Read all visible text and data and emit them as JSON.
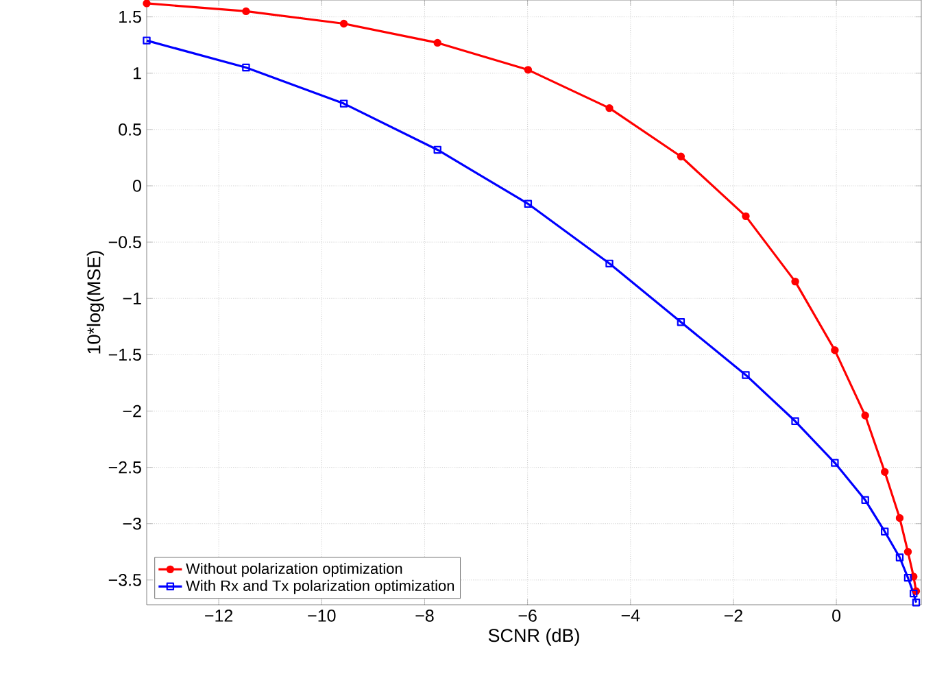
{
  "chart_data": {
    "type": "line",
    "xlabel": "SCNR (dB)",
    "ylabel": "10*log(MSE)",
    "x": [
      -13.4,
      -11.47,
      -9.57,
      -7.75,
      -5.99,
      -4.41,
      -3.02,
      -1.76,
      -0.8,
      -0.03,
      0.56,
      0.94,
      1.23,
      1.39,
      1.5,
      1.55
    ],
    "series": [
      {
        "name": "Without polarization optimization",
        "color": "#ff0000",
        "marker": "circle",
        "values": [
          1.62,
          1.55,
          1.44,
          1.27,
          1.03,
          0.69,
          0.26,
          -0.27,
          -0.85,
          -1.46,
          -2.04,
          -2.54,
          -2.95,
          -3.25,
          -3.47,
          -3.6
        ]
      },
      {
        "name": "With Rx and Tx polarization optimization",
        "color": "#0000ff",
        "marker": "square",
        "values": [
          1.29,
          1.05,
          0.73,
          0.32,
          -0.16,
          -0.69,
          -1.21,
          -1.68,
          -2.09,
          -2.46,
          -2.79,
          -3.07,
          -3.3,
          -3.48,
          -3.62,
          -3.7
        ]
      }
    ],
    "xlim": [
      -13.4,
      1.65
    ],
    "ylim": [
      -3.72,
      1.65
    ],
    "xticks": [
      {
        "value": -12,
        "label": "−12"
      },
      {
        "value": -10,
        "label": "−10"
      },
      {
        "value": -8,
        "label": "−8"
      },
      {
        "value": -6,
        "label": "−6"
      },
      {
        "value": -4,
        "label": "−4"
      },
      {
        "value": -2,
        "label": "−2"
      },
      0
    ],
    "yticks": [
      {
        "value": -3.5,
        "label": "−3.5"
      },
      {
        "value": -3,
        "label": "−3"
      },
      {
        "value": -2.5,
        "label": "−2.5"
      },
      {
        "value": -2,
        "label": "−2"
      },
      {
        "value": -1.5,
        "label": "−1.5"
      },
      {
        "value": -1,
        "label": "−1"
      },
      {
        "value": -0.5,
        "label": "−0.5"
      },
      0,
      0.5,
      1,
      1.5
    ],
    "grid": true,
    "legend": "bottom left",
    "line_style": "solid"
  }
}
